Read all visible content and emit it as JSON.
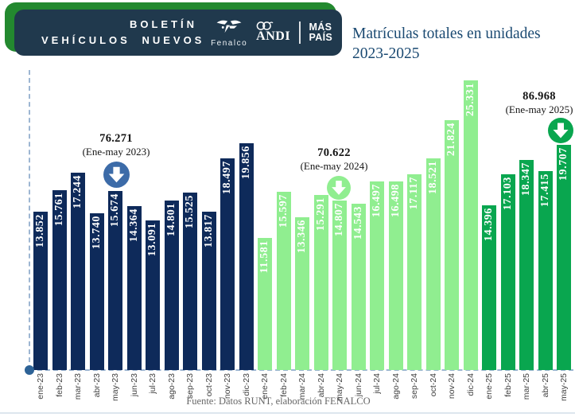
{
  "header": {
    "line1": "BOLETÍN",
    "line2": "VEHÍCULOS NUEVOS",
    "banner_bg": "#20394d",
    "banner_shadow": "#23892f",
    "logos": {
      "fenalco_label": "Fenalco",
      "andi_label": "ANDI",
      "mas_pais_line1": "MÁS",
      "mas_pais_line2": "PAÍS"
    }
  },
  "title": {
    "line1": "Matrículas totales en unidades",
    "line2": "2023-2025",
    "color": "#1b4a72"
  },
  "annotations": [
    {
      "total": "76.271",
      "period": "(Ene-may 2023)",
      "arrow_color": "#3c6ba8",
      "arrow_icon": "circle-down-arrow"
    },
    {
      "total": "70.622",
      "period": "(Ene-may 2024)",
      "arrow_color": "#90ee90",
      "arrow_icon": "circle-down-arrow"
    },
    {
      "total": "86.968",
      "period": "(Ene-may 2025)",
      "arrow_color": "#09a64f",
      "arrow_icon": "circle-down-arrow"
    }
  ],
  "footer": {
    "source": "Fuente: Datos RUNT, elaboración FENALCO"
  },
  "axis_colors": {
    "dash": "#9db6d2",
    "origin_dot": "#2d6296"
  },
  "chart_data": {
    "type": "bar",
    "title": "Matrículas totales en unidades 2023-2025",
    "xlabel": "",
    "ylabel": "",
    "grid": false,
    "legend": false,
    "ylim": [
      0,
      25331
    ],
    "categories": [
      "ene-23",
      "feb-23",
      "mar-23",
      "abr-23",
      "may-23",
      "jun-23",
      "jul-23",
      "ago-23",
      "sep-23",
      "oct-23",
      "nov-23",
      "dic-23",
      "ene-24",
      "feb-24",
      "mar-24",
      "abr-24",
      "may-24",
      "jun-24",
      "jul-24",
      "ago-24",
      "sep-24",
      "oct-24",
      "nov-24",
      "dic-24",
      "ene-25",
      "feb-25",
      "mar-25",
      "abr-25",
      "may-25"
    ],
    "values": [
      13852,
      15761,
      17244,
      13740,
      15674,
      14364,
      13091,
      14801,
      15525,
      13817,
      18497,
      19856,
      11581,
      15597,
      13346,
      15291,
      14807,
      14543,
      16497,
      16498,
      17117,
      18521,
      21824,
      25331,
      14396,
      17103,
      18347,
      17415,
      19707
    ],
    "colors": {
      "23": "#0e2a5a",
      "24": "#90ee90",
      "25": "#09a64f"
    },
    "period_totals": {
      "ene_may_2023": 76271,
      "ene_may_2024": 70622,
      "ene_may_2025": 86968
    },
    "value_label_color": "#ffffff",
    "tick_label_color": "#3f3f3f"
  }
}
